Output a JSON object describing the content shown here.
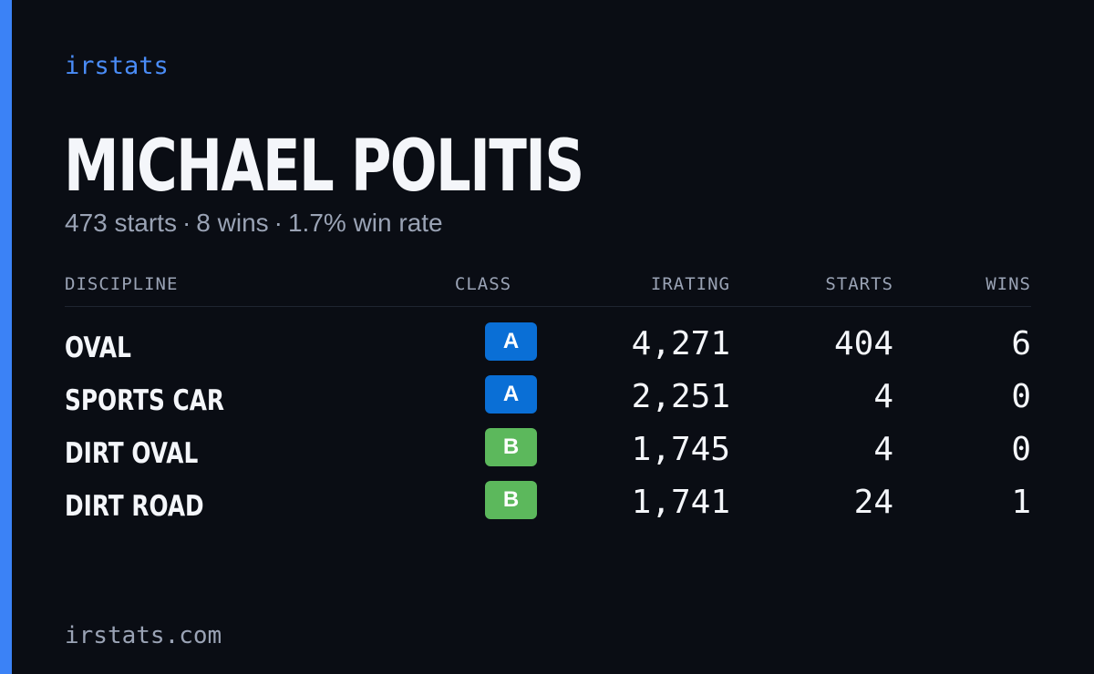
{
  "brand": "irstats",
  "driver": {
    "name": "MICHAEL POLITIS",
    "starts_text": "473 starts",
    "wins_text": "8 wins",
    "win_rate_text": "1.7% win rate",
    "separator": "·"
  },
  "table": {
    "headers": {
      "discipline": "DISCIPLINE",
      "class": "CLASS",
      "irating": "IRATING",
      "starts": "STARTS",
      "wins": "WINS"
    },
    "rows": [
      {
        "discipline": "OVAL",
        "class": "A",
        "irating": "4,271",
        "starts": "404",
        "wins": "6"
      },
      {
        "discipline": "SPORTS CAR",
        "class": "A",
        "irating": "2,251",
        "starts": "4",
        "wins": "0"
      },
      {
        "discipline": "DIRT OVAL",
        "class": "B",
        "irating": "1,745",
        "starts": "4",
        "wins": "0"
      },
      {
        "discipline": "DIRT ROAD",
        "class": "B",
        "irating": "1,741",
        "starts": "24",
        "wins": "1"
      }
    ]
  },
  "footer": {
    "url": "irstats.com"
  },
  "colors": {
    "background": "#0a0d14",
    "accent": "#3b82f6",
    "class_a": "#0a6fd6",
    "class_b": "#5cb85c",
    "muted_text": "#9aa3b5"
  }
}
